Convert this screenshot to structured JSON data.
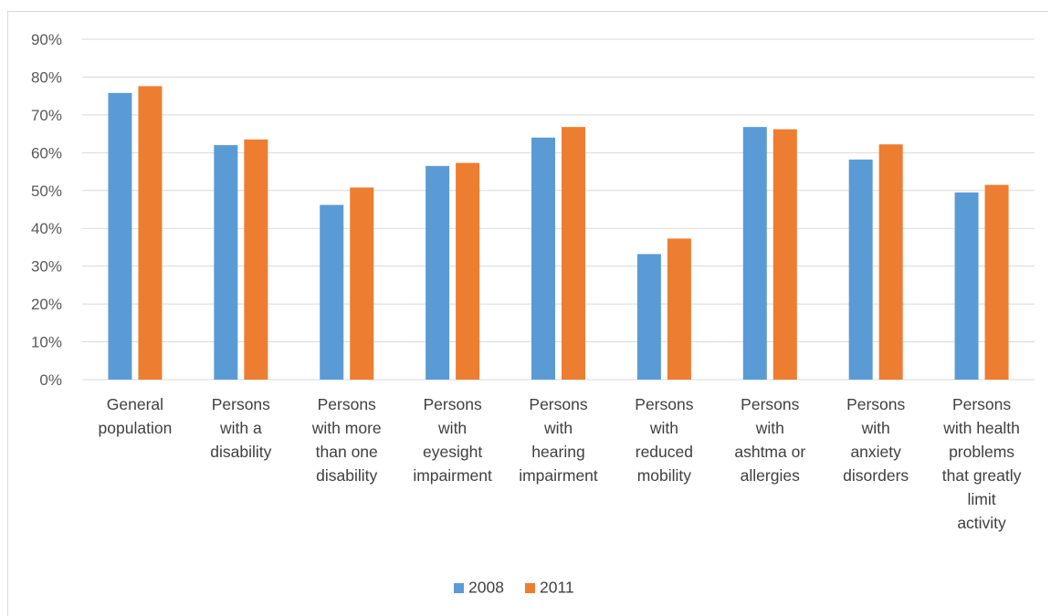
{
  "chart_data": {
    "type": "bar",
    "categories": [
      [
        "General",
        "population"
      ],
      [
        "Persons",
        "with a",
        "disability"
      ],
      [
        "Persons",
        "with more",
        "than one",
        "disability"
      ],
      [
        "Persons",
        "with",
        "eyesight",
        "impairment"
      ],
      [
        "Persons",
        "with",
        "hearing",
        "impairment"
      ],
      [
        "Persons",
        "with",
        "reduced",
        "mobility"
      ],
      [
        "Persons",
        "with",
        "ashtma or",
        "allergies"
      ],
      [
        "Persons",
        "with",
        "anxiety",
        "disorders"
      ],
      [
        "Persons",
        "with health",
        "problems",
        "that greatly",
        "limit",
        "activity"
      ]
    ],
    "series": [
      {
        "name": "2008",
        "color": "#5b9bd5",
        "values": [
          75.8,
          62.0,
          46.2,
          56.5,
          64.0,
          33.2,
          66.8,
          58.2,
          49.5
        ]
      },
      {
        "name": "2011",
        "color": "#ed7d31",
        "values": [
          77.6,
          63.5,
          50.8,
          57.3,
          66.8,
          37.3,
          66.2,
          62.2,
          51.5
        ]
      }
    ],
    "yticks": [
      "0%",
      "10%",
      "20%",
      "30%",
      "40%",
      "50%",
      "60%",
      "70%",
      "80%",
      "90%"
    ],
    "ylim": [
      0,
      90
    ],
    "grid": true,
    "legend": "bottom-center",
    "title": "",
    "xlabel": "",
    "ylabel": ""
  }
}
